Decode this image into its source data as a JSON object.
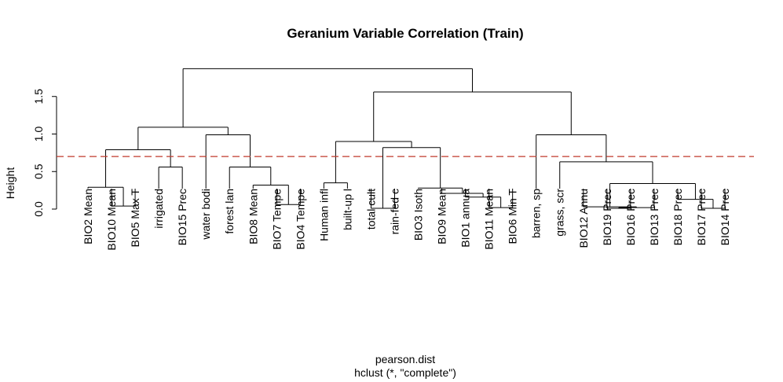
{
  "chart_data": {
    "type": "dendrogram",
    "title": "Geranium Variable Correlation (Train)",
    "ylabel": "Height",
    "xlabel": "pearson.dist",
    "sub": "hclust (*, \"complete\")",
    "ylim": [
      0,
      1.9
    ],
    "yticks": [
      0.0,
      0.5,
      1.0,
      1.5
    ],
    "ytick_labels": [
      "0.0",
      "0.5",
      "1.0",
      "1.5"
    ],
    "cut_height": 0.7,
    "cut_color": "#c0392b",
    "leaves": [
      "BIO2 Mean",
      "BIO10 Mean",
      "BIO5 Max T",
      "irrigated",
      "BIO15 Prec",
      "water bodi",
      "forest lan",
      "BIO8 Mean",
      "BIO7 Tempe",
      "BIO4 Tempe",
      "Human infl",
      "built-up l",
      "total cult",
      "rain-fed c",
      "BIO3 Isoth",
      "BIO9 Mean",
      "BIO1 annua",
      "BIO11 Mean",
      "BIO6 Min T",
      "barren, sp",
      "grass, scr",
      "BIO12 Annu",
      "BIO19 Prec",
      "BIO16 Prec",
      "BIO13 Prec",
      "BIO18 Prec",
      "BIO17 Prec",
      "BIO14 Prec"
    ],
    "merges": [
      [
        -2,
        -3,
        0.04
      ],
      [
        -1,
        1,
        0.29
      ],
      [
        -4,
        -5,
        0.56
      ],
      [
        2,
        3,
        0.79
      ],
      [
        -9,
        -10,
        0.06
      ],
      [
        -8,
        5,
        0.32
      ],
      [
        -7,
        6,
        0.56
      ],
      [
        -6,
        7,
        0.99
      ],
      [
        4,
        8,
        1.09
      ],
      [
        -11,
        -12,
        0.35
      ],
      [
        -13,
        -14,
        0.01
      ],
      [
        -18,
        -19,
        0.02
      ],
      [
        -17,
        12,
        0.16
      ],
      [
        -16,
        13,
        0.21
      ],
      [
        -15,
        14,
        0.28
      ],
      [
        11,
        15,
        0.82
      ],
      [
        10,
        16,
        0.9
      ],
      [
        -23,
        -24,
        0.01
      ],
      [
        -25,
        18,
        0.02
      ],
      [
        -22,
        19,
        0.03
      ],
      [
        -27,
        -28,
        0.01
      ],
      [
        -26,
        21,
        0.13
      ],
      [
        20,
        22,
        0.34
      ],
      [
        -21,
        23,
        0.63
      ],
      [
        -20,
        24,
        0.99
      ],
      [
        17,
        25,
        1.56
      ],
      [
        9,
        26,
        1.87
      ]
    ]
  }
}
